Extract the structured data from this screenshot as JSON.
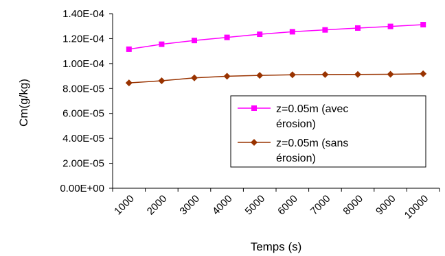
{
  "chart_data": {
    "type": "line",
    "title": "",
    "xlabel": "Temps (s)",
    "ylabel": "Cm(g/kg)",
    "x_ticks": [
      "1000",
      "2000",
      "3000",
      "4000",
      "5000",
      "6000",
      "7000",
      "8000",
      "9000",
      "10000"
    ],
    "y_ticks": [
      "0.00E+00",
      "2.00E-05",
      "4.00E-05",
      "6.00E-05",
      "8.00E-05",
      "1.00E-04",
      "1.20E-04",
      "1.40E-04"
    ],
    "ylim": [
      0,
      0.00014
    ],
    "grid": false,
    "legend_placement": "center-right",
    "x": [
      1500,
      2500,
      3500,
      4500,
      5500,
      6500,
      7500,
      8500,
      9500,
      10500
    ],
    "series": [
      {
        "name": [
          "z=0.05m (avec",
          "érosion)"
        ],
        "color": "#ff00ff",
        "marker": "square",
        "values": [
          0.0001115,
          0.0001155,
          0.0001185,
          0.000121,
          0.0001235,
          0.0001255,
          0.000127,
          0.0001285,
          0.0001298,
          0.0001312
        ]
      },
      {
        "name": [
          "z=0.05m (sans",
          "érosion)"
        ],
        "color": "#993300",
        "marker": "diamond",
        "values": [
          8.45e-05,
          8.62e-05,
          8.85e-05,
          8.98e-05,
          9.05e-05,
          9.1e-05,
          9.12e-05,
          9.13e-05,
          9.14e-05,
          9.18e-05
        ]
      }
    ]
  }
}
